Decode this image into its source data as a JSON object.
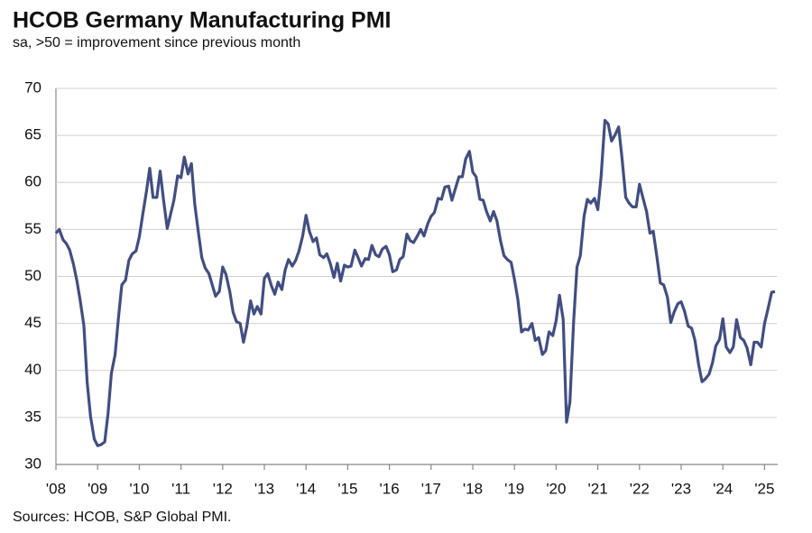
{
  "chart_data": {
    "type": "line",
    "title": "HCOB Germany Manufacturing PMI",
    "subtitle": "sa, >50 = improvement since previous month",
    "source": "Sources: HCOB, S&P Global PMI.",
    "color": "#414e82",
    "grid": true,
    "xlim": [
      2008,
      2025.3
    ],
    "ylim": [
      30,
      70
    ],
    "yticks": [
      30,
      35,
      40,
      45,
      50,
      55,
      60,
      65,
      70
    ],
    "xticks": [
      {
        "value": 2008,
        "label": "'08"
      },
      {
        "value": 2009,
        "label": "'09"
      },
      {
        "value": 2010,
        "label": "'10"
      },
      {
        "value": 2011,
        "label": "'11"
      },
      {
        "value": 2012,
        "label": "'12"
      },
      {
        "value": 2013,
        "label": "'13"
      },
      {
        "value": 2014,
        "label": "'14"
      },
      {
        "value": 2015,
        "label": "'15"
      },
      {
        "value": 2016,
        "label": "'16"
      },
      {
        "value": 2017,
        "label": "'17"
      },
      {
        "value": 2018,
        "label": "'18"
      },
      {
        "value": 2019,
        "label": "'19"
      },
      {
        "value": 2020,
        "label": "'20"
      },
      {
        "value": 2021,
        "label": "'21"
      },
      {
        "value": 2022,
        "label": "'22"
      },
      {
        "value": 2023,
        "label": "'23"
      },
      {
        "value": 2024,
        "label": "'24"
      },
      {
        "value": 2025,
        "label": "'25"
      }
    ],
    "x": [
      2008,
      2008.08,
      2008.17,
      2008.25,
      2008.33,
      2008.42,
      2008.5,
      2008.58,
      2008.67,
      2008.75,
      2008.83,
      2008.92,
      2009,
      2009.08,
      2009.17,
      2009.25,
      2009.33,
      2009.42,
      2009.5,
      2009.58,
      2009.67,
      2009.75,
      2009.83,
      2009.92,
      2010,
      2010.08,
      2010.17,
      2010.25,
      2010.33,
      2010.42,
      2010.5,
      2010.58,
      2010.67,
      2010.75,
      2010.83,
      2010.92,
      2011,
      2011.08,
      2011.17,
      2011.25,
      2011.33,
      2011.42,
      2011.5,
      2011.58,
      2011.67,
      2011.75,
      2011.83,
      2011.92,
      2012,
      2012.08,
      2012.17,
      2012.25,
      2012.33,
      2012.42,
      2012.5,
      2012.58,
      2012.67,
      2012.75,
      2012.83,
      2012.92,
      2013,
      2013.08,
      2013.17,
      2013.25,
      2013.33,
      2013.42,
      2013.5,
      2013.58,
      2013.67,
      2013.75,
      2013.83,
      2013.92,
      2014,
      2014.08,
      2014.17,
      2014.25,
      2014.33,
      2014.42,
      2014.5,
      2014.58,
      2014.67,
      2014.75,
      2014.83,
      2014.92,
      2015,
      2015.08,
      2015.17,
      2015.25,
      2015.33,
      2015.42,
      2015.5,
      2015.58,
      2015.67,
      2015.75,
      2015.83,
      2015.92,
      2016,
      2016.08,
      2016.17,
      2016.25,
      2016.33,
      2016.42,
      2016.5,
      2016.58,
      2016.67,
      2016.75,
      2016.83,
      2016.92,
      2017,
      2017.08,
      2017.17,
      2017.25,
      2017.33,
      2017.42,
      2017.5,
      2017.58,
      2017.67,
      2017.75,
      2017.83,
      2017.92,
      2018,
      2018.08,
      2018.17,
      2018.25,
      2018.33,
      2018.42,
      2018.5,
      2018.58,
      2018.67,
      2018.75,
      2018.83,
      2018.92,
      2019,
      2019.08,
      2019.17,
      2019.25,
      2019.33,
      2019.42,
      2019.5,
      2019.58,
      2019.67,
      2019.75,
      2019.83,
      2019.92,
      2020,
      2020.08,
      2020.17,
      2020.25,
      2020.33,
      2020.42,
      2020.5,
      2020.58,
      2020.67,
      2020.75,
      2020.83,
      2020.92,
      2021,
      2021.08,
      2021.17,
      2021.25,
      2021.33,
      2021.42,
      2021.5,
      2021.58,
      2021.67,
      2021.75,
      2021.83,
      2021.92,
      2022,
      2022.08,
      2022.17,
      2022.25,
      2022.33,
      2022.42,
      2022.5,
      2022.58,
      2022.67,
      2022.75,
      2022.83,
      2022.92,
      2023,
      2023.08,
      2023.17,
      2023.25,
      2023.33,
      2023.42,
      2023.5,
      2023.58,
      2023.67,
      2023.75,
      2023.83,
      2023.92,
      2024,
      2024.08,
      2024.17,
      2024.25,
      2024.33,
      2024.42,
      2024.5,
      2024.58,
      2024.67,
      2024.75,
      2024.83,
      2024.92,
      2025,
      2025.08,
      2025.17,
      2025.25
    ],
    "values": [
      54.6,
      55.0,
      53.9,
      53.5,
      52.8,
      51.3,
      49.6,
      47.5,
      44.8,
      38.7,
      35.1,
      32.7,
      32.0,
      32.1,
      32.4,
      35.4,
      39.7,
      41.7,
      45.6,
      49.1,
      49.6,
      51.7,
      52.4,
      52.7,
      54.2,
      56.5,
      59.0,
      61.5,
      58.4,
      58.4,
      61.2,
      58.2,
      55.1,
      56.6,
      58.1,
      60.7,
      60.5,
      62.7,
      60.9,
      62.0,
      57.7,
      54.6,
      52.0,
      50.9,
      50.3,
      49.1,
      47.9,
      48.4,
      51.0,
      50.2,
      48.4,
      46.2,
      45.2,
      45.0,
      43.0,
      44.7,
      47.4,
      46.0,
      46.8,
      46.0,
      49.8,
      50.3,
      49.0,
      48.1,
      49.4,
      48.6,
      50.7,
      51.8,
      51.1,
      51.7,
      52.7,
      54.3,
      56.5,
      54.8,
      53.7,
      54.1,
      52.3,
      52.0,
      52.4,
      51.4,
      49.9,
      51.4,
      49.5,
      51.2,
      51.0,
      51.1,
      52.8,
      52.0,
      51.1,
      51.9,
      51.8,
      53.3,
      52.3,
      52.1,
      52.9,
      53.2,
      52.3,
      50.5,
      50.7,
      51.8,
      52.1,
      54.5,
      53.8,
      53.6,
      54.3,
      55.0,
      54.3,
      55.6,
      56.4,
      56.8,
      58.3,
      58.2,
      59.5,
      59.6,
      58.1,
      59.3,
      60.6,
      60.6,
      62.5,
      63.3,
      61.1,
      60.6,
      58.2,
      58.1,
      56.9,
      55.9,
      56.9,
      55.9,
      53.7,
      52.2,
      51.8,
      51.5,
      49.7,
      47.6,
      44.1,
      44.4,
      44.3,
      45.0,
      43.2,
      43.5,
      41.7,
      42.1,
      44.1,
      43.7,
      45.3,
      48.0,
      45.4,
      34.5,
      36.6,
      45.2,
      51.0,
      52.2,
      56.4,
      58.2,
      57.8,
      58.3,
      57.1,
      60.7,
      66.6,
      66.2,
      64.4,
      65.1,
      65.9,
      62.6,
      58.4,
      57.8,
      57.4,
      57.4,
      59.8,
      58.4,
      56.9,
      54.6,
      54.8,
      52.0,
      49.3,
      49.1,
      47.8,
      45.1,
      46.2,
      47.1,
      47.3,
      46.3,
      44.7,
      44.5,
      43.2,
      40.6,
      38.8,
      39.1,
      39.6,
      40.8,
      42.6,
      43.3,
      45.5,
      42.5,
      41.9,
      42.5,
      45.4,
      43.5,
      43.2,
      42.4,
      40.6,
      43.0,
      43.0,
      42.5,
      45.0,
      46.5,
      48.3,
      48.4
    ]
  }
}
